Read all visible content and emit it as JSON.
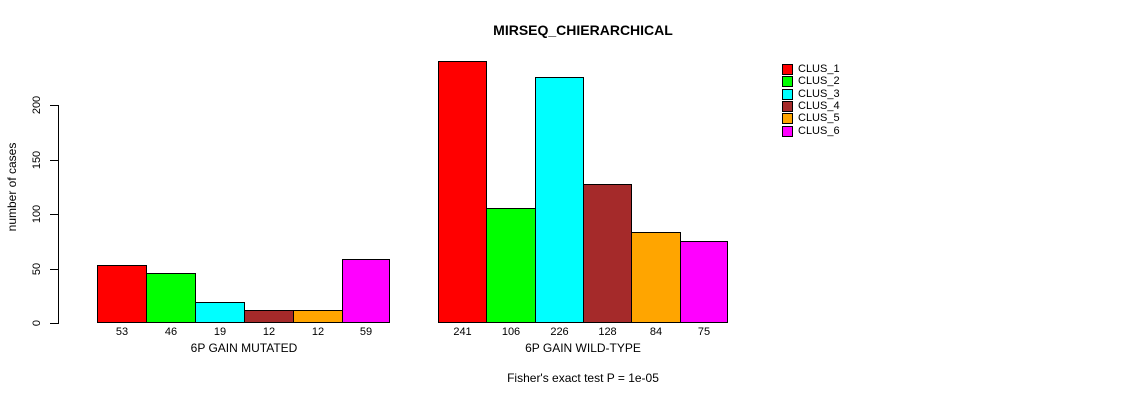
{
  "chart_data": {
    "type": "bar",
    "title": "MIRSEQ_CHIERARCHICAL",
    "ylabel": "number of cases",
    "xlabel": "",
    "yticks": [
      0,
      50,
      100,
      150,
      200
    ],
    "ylim": [
      0,
      241
    ],
    "grid": false,
    "legend_position": "right",
    "legend": [
      {
        "name": "CLUS_1",
        "color": "#ff0000"
      },
      {
        "name": "CLUS_2",
        "color": "#00ff00"
      },
      {
        "name": "CLUS_3",
        "color": "#00ffff"
      },
      {
        "name": "CLUS_4",
        "color": "#a52a2a"
      },
      {
        "name": "CLUS_5",
        "color": "#ffa500"
      },
      {
        "name": "CLUS_6",
        "color": "#ff00ff"
      }
    ],
    "groups": [
      {
        "label": "6P GAIN MUTATED",
        "values": [
          53,
          46,
          19,
          12,
          12,
          59
        ]
      },
      {
        "label": "6P GAIN WILD-TYPE",
        "values": [
          241,
          106,
          226,
          128,
          84,
          75
        ]
      }
    ],
    "annotation": "Fisher's exact test P = 1e-05"
  }
}
